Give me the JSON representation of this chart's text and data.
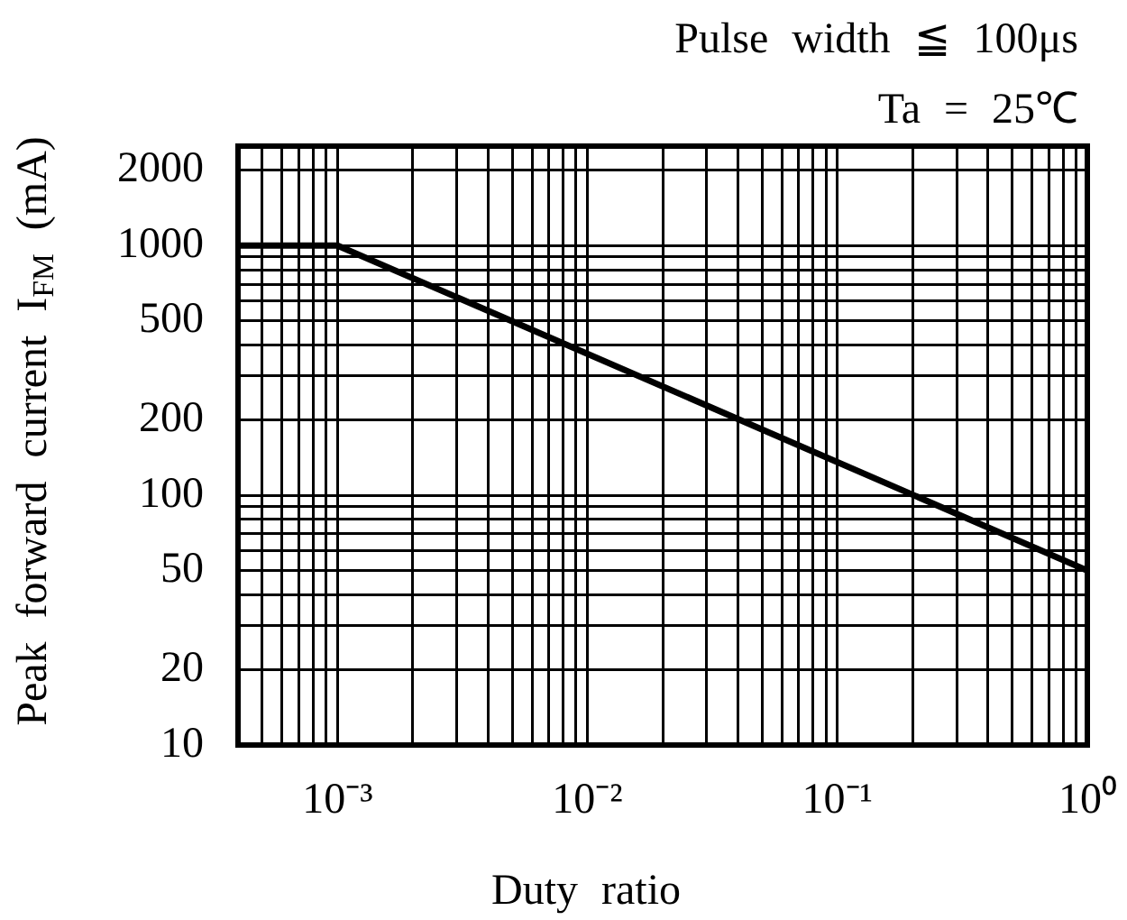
{
  "chart_data": {
    "type": "line",
    "xlabel": "Duty ratio",
    "ylabel": "Peak forward current I$_{FM}$ (mA)",
    "annotations": [
      "Pulse width ≦ 100μs",
      "Ta = 25℃"
    ],
    "x": [
      0.0004,
      0.001,
      1
    ],
    "series": [
      {
        "color": "#000000",
        "values": [
          1000,
          1000,
          50
        ]
      }
    ],
    "log": "xy",
    "xlim": [
      0.0004,
      1
    ],
    "ylim": [
      10,
      2500
    ],
    "xticks": [
      {
        "value": 0.0005,
        "label": null
      },
      {
        "value": 0.0006,
        "label": null
      },
      {
        "value": 0.0007,
        "label": null
      },
      {
        "value": 0.0008,
        "label": null
      },
      {
        "value": 0.0009,
        "label": null
      },
      {
        "value": 0.001,
        "label": "10⁻³"
      },
      {
        "value": 0.002,
        "label": null
      },
      {
        "value": 0.003,
        "label": null
      },
      {
        "value": 0.004,
        "label": null
      },
      {
        "value": 0.005,
        "label": null
      },
      {
        "value": 0.006,
        "label": null
      },
      {
        "value": 0.007,
        "label": null
      },
      {
        "value": 0.008,
        "label": null
      },
      {
        "value": 0.009,
        "label": null
      },
      {
        "value": 0.01,
        "label": "10⁻²"
      },
      {
        "value": 0.02,
        "label": null
      },
      {
        "value": 0.03,
        "label": null
      },
      {
        "value": 0.04,
        "label": null
      },
      {
        "value": 0.05,
        "label": null
      },
      {
        "value": 0.06,
        "label": null
      },
      {
        "value": 0.07,
        "label": null
      },
      {
        "value": 0.08,
        "label": null
      },
      {
        "value": 0.09,
        "label": null
      },
      {
        "value": 0.1,
        "label": "10⁻¹"
      },
      {
        "value": 0.2,
        "label": null
      },
      {
        "value": 0.3,
        "label": null
      },
      {
        "value": 0.4,
        "label": null
      },
      {
        "value": 0.5,
        "label": null
      },
      {
        "value": 0.6,
        "label": null
      },
      {
        "value": 0.7,
        "label": null
      },
      {
        "value": 0.8,
        "label": null
      },
      {
        "value": 0.9,
        "label": null
      },
      {
        "value": 1,
        "label": "10⁰"
      }
    ],
    "yticks": [
      10,
      20,
      {
        "value": 30,
        "label": null
      },
      {
        "value": 40,
        "label": null
      },
      50,
      {
        "value": 60,
        "label": null
      },
      {
        "value": 70,
        "label": null
      },
      {
        "value": 80,
        "label": null
      },
      {
        "value": 90,
        "label": null
      },
      100,
      200,
      {
        "value": 300,
        "label": null
      },
      {
        "value": 400,
        "label": null
      },
      500,
      {
        "value": 600,
        "label": null
      },
      {
        "value": 700,
        "label": null
      },
      {
        "value": 800,
        "label": null
      },
      {
        "value": 900,
        "label": null
      },
      1000,
      2000
    ],
    "grid": true,
    "marker": "none",
    "line_style": "solid",
    "legend": false
  }
}
